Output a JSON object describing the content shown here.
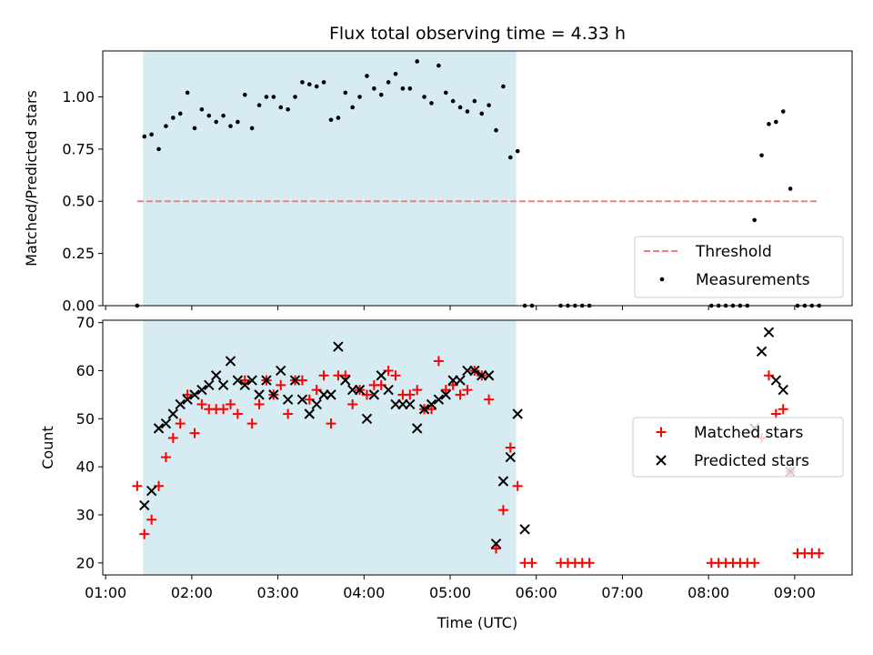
{
  "chart_data": [
    {
      "type": "scatter",
      "title": "Flux total observing time = 4.33 h",
      "xlabel": "",
      "ylabel": "Matched/Predicted stars",
      "ylim": [
        0,
        1.22
      ],
      "xlim": [
        "00:58",
        "09:40"
      ],
      "yticks": [
        {
          "value": 0.0,
          "label": "0.00"
        },
        {
          "value": 0.25,
          "label": "0.25"
        },
        {
          "value": 0.5,
          "label": "0.50"
        },
        {
          "value": 0.75,
          "label": "0.75"
        },
        {
          "value": 1.0,
          "label": "1.00"
        }
      ],
      "shaded_span": {
        "start": "01:26",
        "end": "05:46",
        "color": "#add8e6"
      },
      "threshold": {
        "name": "Threshold",
        "y": 0.5,
        "x_start": "01:22",
        "x_end": "09:17",
        "color": "#f08080",
        "style": "dashed"
      },
      "legend": {
        "placement": "lower-right",
        "entries": [
          "Threshold",
          "Measurements"
        ]
      },
      "series": [
        {
          "name": "Measurements",
          "marker": "dot",
          "color": "#000000",
          "points": [
            [
              "01:22",
              0.0
            ],
            [
              "01:27",
              0.81
            ],
            [
              "01:32",
              0.82
            ],
            [
              "01:37",
              0.75
            ],
            [
              "01:42",
              0.86
            ],
            [
              "01:47",
              0.9
            ],
            [
              "01:52",
              0.92
            ],
            [
              "01:57",
              1.02
            ],
            [
              "02:02",
              0.85
            ],
            [
              "02:07",
              0.94
            ],
            [
              "02:12",
              0.91
            ],
            [
              "02:17",
              0.88
            ],
            [
              "02:22",
              0.91
            ],
            [
              "02:27",
              0.86
            ],
            [
              "02:32",
              0.88
            ],
            [
              "02:37",
              1.01
            ],
            [
              "02:42",
              0.85
            ],
            [
              "02:47",
              0.96
            ],
            [
              "02:52",
              1.0
            ],
            [
              "02:57",
              1.0
            ],
            [
              "03:02",
              0.95
            ],
            [
              "03:07",
              0.94
            ],
            [
              "03:12",
              1.0
            ],
            [
              "03:17",
              1.07
            ],
            [
              "03:22",
              1.06
            ],
            [
              "03:27",
              1.05
            ],
            [
              "03:32",
              1.07
            ],
            [
              "03:37",
              0.89
            ],
            [
              "03:42",
              0.9
            ],
            [
              "03:47",
              1.02
            ],
            [
              "03:52",
              0.95
            ],
            [
              "03:57",
              1.0
            ],
            [
              "04:02",
              1.1
            ],
            [
              "04:07",
              1.04
            ],
            [
              "04:12",
              1.01
            ],
            [
              "04:17",
              1.07
            ],
            [
              "04:22",
              1.11
            ],
            [
              "04:27",
              1.04
            ],
            [
              "04:32",
              1.04
            ],
            [
              "04:37",
              1.17
            ],
            [
              "04:42",
              1.0
            ],
            [
              "04:47",
              0.97
            ],
            [
              "04:52",
              1.15
            ],
            [
              "04:57",
              1.02
            ],
            [
              "05:02",
              0.98
            ],
            [
              "05:07",
              0.95
            ],
            [
              "05:12",
              0.93
            ],
            [
              "05:17",
              0.98
            ],
            [
              "05:22",
              0.92
            ],
            [
              "05:27",
              0.96
            ],
            [
              "05:32",
              0.84
            ],
            [
              "05:37",
              1.05
            ],
            [
              "05:42",
              0.71
            ],
            [
              "05:47",
              0.74
            ],
            [
              "05:52",
              0.0
            ],
            [
              "05:57",
              0.0
            ],
            [
              "06:17",
              0.0
            ],
            [
              "06:22",
              0.0
            ],
            [
              "06:27",
              0.0
            ],
            [
              "06:32",
              0.0
            ],
            [
              "06:37",
              0.0
            ],
            [
              "08:02",
              0.0
            ],
            [
              "08:07",
              0.0
            ],
            [
              "08:12",
              0.0
            ],
            [
              "08:17",
              0.0
            ],
            [
              "08:22",
              0.0
            ],
            [
              "08:27",
              0.0
            ],
            [
              "08:32",
              0.41
            ],
            [
              "08:37",
              0.72
            ],
            [
              "08:42",
              0.87
            ],
            [
              "08:47",
              0.88
            ],
            [
              "08:52",
              0.93
            ],
            [
              "08:57",
              0.56
            ],
            [
              "09:02",
              0.0
            ],
            [
              "09:07",
              0.0
            ],
            [
              "09:12",
              0.0
            ],
            [
              "09:17",
              0.0
            ]
          ]
        }
      ]
    },
    {
      "type": "scatter",
      "title": "",
      "xlabel": "Time (UTC)",
      "ylabel": "Count",
      "ylim": [
        17.5,
        70.5
      ],
      "xlim": [
        "00:58",
        "09:40"
      ],
      "xticks": [
        "01:00",
        "02:00",
        "03:00",
        "04:00",
        "05:00",
        "06:00",
        "07:00",
        "08:00",
        "09:00"
      ],
      "yticks": [
        {
          "value": 20,
          "label": "20"
        },
        {
          "value": 30,
          "label": "30"
        },
        {
          "value": 40,
          "label": "40"
        },
        {
          "value": 50,
          "label": "50"
        },
        {
          "value": 60,
          "label": "60"
        },
        {
          "value": 70,
          "label": "70"
        }
      ],
      "shaded_span": {
        "start": "01:26",
        "end": "05:46",
        "color": "#add8e6"
      },
      "legend": {
        "placement": "center-right",
        "entries": [
          "Matched stars",
          "Predicted stars"
        ]
      },
      "series": [
        {
          "name": "Matched stars",
          "marker": "plus",
          "color": "#ff0000",
          "points": [
            [
              "01:22",
              36
            ],
            [
              "01:27",
              26
            ],
            [
              "01:32",
              29
            ],
            [
              "01:37",
              36
            ],
            [
              "01:42",
              42
            ],
            [
              "01:47",
              46
            ],
            [
              "01:52",
              49
            ],
            [
              "01:57",
              55
            ],
            [
              "02:02",
              47
            ],
            [
              "02:07",
              53
            ],
            [
              "02:12",
              52
            ],
            [
              "02:17",
              52
            ],
            [
              "02:22",
              52
            ],
            [
              "02:27",
              53
            ],
            [
              "02:32",
              51
            ],
            [
              "02:37",
              58
            ],
            [
              "02:42",
              49
            ],
            [
              "02:47",
              53
            ],
            [
              "02:52",
              58
            ],
            [
              "02:57",
              55
            ],
            [
              "03:02",
              57
            ],
            [
              "03:07",
              51
            ],
            [
              "03:12",
              58
            ],
            [
              "03:17",
              58
            ],
            [
              "03:22",
              54
            ],
            [
              "03:27",
              56
            ],
            [
              "03:32",
              59
            ],
            [
              "03:37",
              49
            ],
            [
              "03:42",
              59
            ],
            [
              "03:47",
              59
            ],
            [
              "03:52",
              53
            ],
            [
              "03:57",
              56
            ],
            [
              "04:02",
              55
            ],
            [
              "04:07",
              57
            ],
            [
              "04:12",
              57
            ],
            [
              "04:17",
              60
            ],
            [
              "04:22",
              59
            ],
            [
              "04:27",
              55
            ],
            [
              "04:32",
              55
            ],
            [
              "04:37",
              56
            ],
            [
              "04:42",
              52
            ],
            [
              "04:47",
              52
            ],
            [
              "04:52",
              62
            ],
            [
              "04:57",
              56
            ],
            [
              "05:02",
              57
            ],
            [
              "05:07",
              55
            ],
            [
              "05:12",
              56
            ],
            [
              "05:17",
              60
            ],
            [
              "05:22",
              59
            ],
            [
              "05:27",
              54
            ],
            [
              "05:32",
              23
            ],
            [
              "05:37",
              31
            ],
            [
              "05:42",
              44
            ],
            [
              "05:47",
              36
            ],
            [
              "05:52",
              20
            ],
            [
              "05:57",
              20
            ],
            [
              "06:17",
              20
            ],
            [
              "06:22",
              20
            ],
            [
              "06:27",
              20
            ],
            [
              "06:32",
              20
            ],
            [
              "06:37",
              20
            ],
            [
              "08:02",
              20
            ],
            [
              "08:07",
              20
            ],
            [
              "08:12",
              20
            ],
            [
              "08:17",
              20
            ],
            [
              "08:22",
              20
            ],
            [
              "08:27",
              20
            ],
            [
              "08:32",
              20
            ],
            [
              "08:37",
              46
            ],
            [
              "08:42",
              59
            ],
            [
              "08:47",
              51
            ],
            [
              "08:52",
              52
            ],
            [
              "08:57",
              39
            ],
            [
              "09:02",
              22
            ],
            [
              "09:07",
              22
            ],
            [
              "09:12",
              22
            ],
            [
              "09:17",
              22
            ]
          ]
        },
        {
          "name": "Predicted stars",
          "marker": "x",
          "color": "#000000",
          "points": [
            [
              "01:27",
              32
            ],
            [
              "01:32",
              35
            ],
            [
              "01:37",
              48
            ],
            [
              "01:42",
              49
            ],
            [
              "01:47",
              51
            ],
            [
              "01:52",
              53
            ],
            [
              "01:57",
              54
            ],
            [
              "02:02",
              55
            ],
            [
              "02:07",
              56
            ],
            [
              "02:12",
              57
            ],
            [
              "02:17",
              59
            ],
            [
              "02:22",
              57
            ],
            [
              "02:27",
              62
            ],
            [
              "02:32",
              58
            ],
            [
              "02:37",
              57
            ],
            [
              "02:42",
              58
            ],
            [
              "02:47",
              55
            ],
            [
              "02:52",
              58
            ],
            [
              "02:57",
              55
            ],
            [
              "03:02",
              60
            ],
            [
              "03:07",
              54
            ],
            [
              "03:12",
              58
            ],
            [
              "03:17",
              54
            ],
            [
              "03:22",
              51
            ],
            [
              "03:27",
              53
            ],
            [
              "03:32",
              55
            ],
            [
              "03:37",
              55
            ],
            [
              "03:42",
              65
            ],
            [
              "03:47",
              58
            ],
            [
              "03:52",
              56
            ],
            [
              "03:57",
              56
            ],
            [
              "04:02",
              50
            ],
            [
              "04:07",
              55
            ],
            [
              "04:12",
              59
            ],
            [
              "04:17",
              56
            ],
            [
              "04:22",
              53
            ],
            [
              "04:27",
              53
            ],
            [
              "04:32",
              53
            ],
            [
              "04:37",
              48
            ],
            [
              "04:42",
              52
            ],
            [
              "04:47",
              53
            ],
            [
              "04:52",
              54
            ],
            [
              "04:57",
              55
            ],
            [
              "05:02",
              58
            ],
            [
              "05:07",
              58
            ],
            [
              "05:12",
              60
            ],
            [
              "05:17",
              60
            ],
            [
              "05:22",
              59
            ],
            [
              "05:27",
              59
            ],
            [
              "05:32",
              24
            ],
            [
              "05:37",
              37
            ],
            [
              "05:42",
              42
            ],
            [
              "05:47",
              51
            ],
            [
              "05:52",
              27
            ],
            [
              "08:32",
              48
            ],
            [
              "08:37",
              64
            ],
            [
              "08:42",
              68
            ],
            [
              "08:47",
              58
            ],
            [
              "08:52",
              56
            ],
            [
              "08:57",
              39
            ]
          ]
        }
      ]
    }
  ]
}
